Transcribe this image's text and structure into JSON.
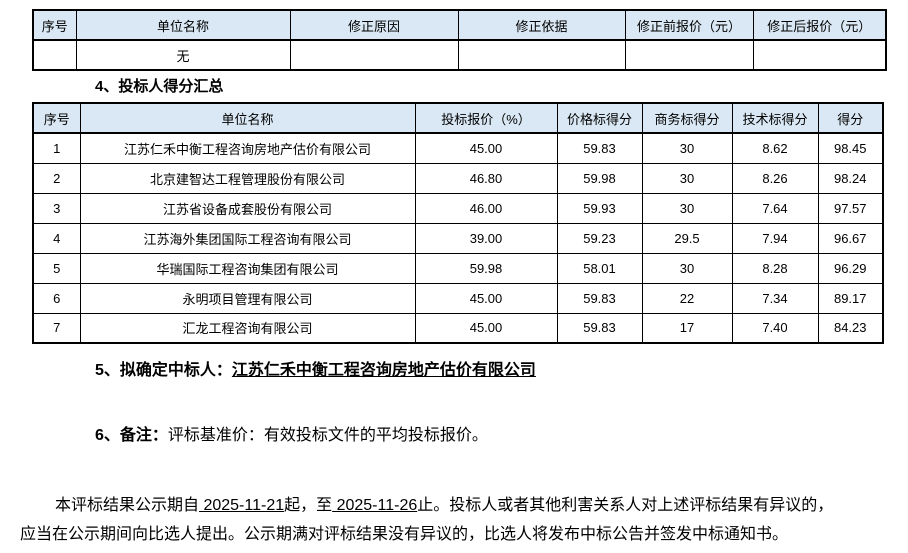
{
  "colors": {
    "header_bg": "#d9e8f4",
    "border": "#000000",
    "page_bg": "#ffffff"
  },
  "correction_table": {
    "headers": [
      "序号",
      "单位名称",
      "修正原因",
      "修正依据",
      "修正前报价（元）",
      "修正后报价（元）"
    ],
    "rows": [
      [
        "",
        "无",
        "",
        "",
        "",
        ""
      ]
    ]
  },
  "score_table": {
    "headers": [
      "序号",
      "单位名称",
      "投标报价（%）",
      "价格标得分",
      "商务标得分",
      "技术标得分",
      "得分"
    ],
    "rows": [
      [
        "1",
        "江苏仁禾中衡工程咨询房地产估价有限公司",
        "45.00",
        "59.83",
        "30",
        "8.62",
        "98.45"
      ],
      [
        "2",
        "北京建智达工程管理股份有限公司",
        "46.80",
        "59.98",
        "30",
        "8.26",
        "98.24"
      ],
      [
        "3",
        "江苏省设备成套股份有限公司",
        "46.00",
        "59.93",
        "30",
        "7.64",
        "97.57"
      ],
      [
        "4",
        "江苏海外集团国际工程咨询有限公司",
        "39.00",
        "59.23",
        "29.5",
        "7.94",
        "96.67"
      ],
      [
        "5",
        "华瑞国际工程咨询集团有限公司",
        "59.98",
        "58.01",
        "30",
        "8.28",
        "96.29"
      ],
      [
        "6",
        "永明项目管理有限公司",
        "45.00",
        "59.83",
        "22",
        "7.34",
        "89.17"
      ],
      [
        "7",
        "汇龙工程咨询有限公司",
        "45.00",
        "59.83",
        "17",
        "7.40",
        "84.23"
      ]
    ]
  },
  "sections": {
    "s4_title": "4、投标人得分汇总",
    "s5_label": "5、拟确定中标人：",
    "s5_winner": "江苏仁禾中衡工程咨询房地产估价有限公司",
    "s6_label": "6、备注：",
    "s6_text": "评标基准价：有效投标文件的平均投标报价。"
  },
  "notice": {
    "lead": "本评标结果公示期自",
    "date_from": " 2025-11-21",
    "mid": "起，至",
    "date_to": " 2025-11-26",
    "tail": "止。投标人或者其他利害关系人对上述评标结果有异议的，应当在公示期间向比选人提出。公示期满对评标结果没有异议的，比选人将发布中标公告并签发中标通知书。"
  }
}
